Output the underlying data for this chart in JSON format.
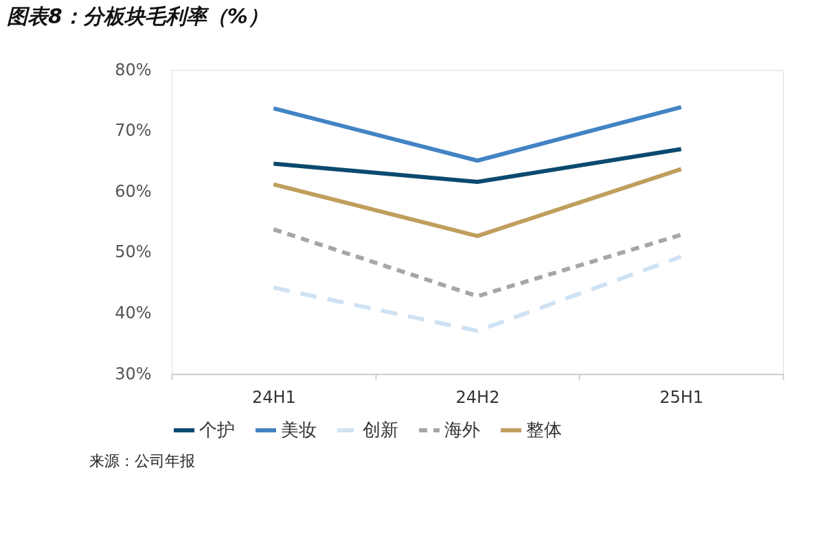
{
  "chart_data": {
    "type": "line",
    "title": "图表8：分板块毛利率（%）",
    "categories": [
      "24H1",
      "24H2",
      "25H1"
    ],
    "series": [
      {
        "name": "个护",
        "color": "#0b4a6f",
        "values": [
          64.6,
          61.6,
          67.0
        ],
        "line_style": "solid"
      },
      {
        "name": "美妆",
        "color": "#4283c4",
        "values": [
          73.7,
          65.1,
          73.9
        ],
        "line_style": "solid"
      },
      {
        "name": "创新",
        "color": "#cfe2f3",
        "values": [
          44.2,
          37.1,
          49.3
        ],
        "line_style": "dashed"
      },
      {
        "name": "海外",
        "color": "#a6a6a6",
        "values": [
          53.8,
          42.8,
          52.9
        ],
        "line_style": "dotted"
      },
      {
        "name": "整体",
        "color": "#c09e5c",
        "values": [
          61.2,
          52.7,
          63.7
        ],
        "line_style": "solid"
      }
    ],
    "ylim": [
      30,
      80
    ],
    "yticks": [
      {
        "value": 30,
        "label": "30%"
      },
      {
        "value": 40,
        "label": "40%"
      },
      {
        "value": 50,
        "label": "50%"
      },
      {
        "value": 60,
        "label": "60%"
      },
      {
        "value": 70,
        "label": "70%"
      },
      {
        "value": 80,
        "label": "80%"
      }
    ],
    "grid": false,
    "legend": "bottom",
    "marker": "none",
    "annotations": [
      "来源：公司年报"
    ]
  }
}
